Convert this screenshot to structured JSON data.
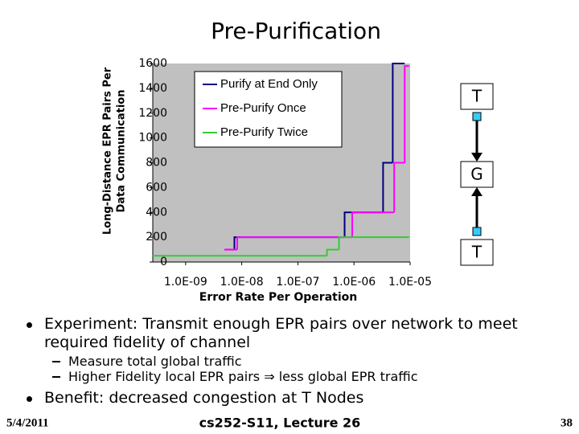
{
  "title": "Pre-Purification",
  "chart_data": {
    "type": "step",
    "ylabel": [
      "Long-Distance EPR Pairs Per",
      "Data Communication"
    ],
    "xlabel": "Error Rate Per Operation",
    "xscale": "log",
    "xlim": [
      2.6e-10,
      1e-05
    ],
    "xticks": [
      {
        "value": 1e-09,
        "label": "1.0E-09"
      },
      {
        "value": 1e-08,
        "label": "1.0E-08"
      },
      {
        "value": 1e-07,
        "label": "1.0E-07"
      },
      {
        "value": 1e-06,
        "label": "1.0E-06"
      },
      {
        "value": 1e-05,
        "label": "1.0E-05"
      }
    ],
    "ylim": [
      0,
      1600
    ],
    "yticks": [
      0,
      200,
      400,
      600,
      800,
      1000,
      1200,
      1400,
      1600
    ],
    "legend": "top-left",
    "series": [
      {
        "name": "Purify at End Only",
        "color": "#000080",
        "x": [
          4.9e-09,
          7.4e-09,
          6.8e-07,
          3.3e-06,
          4.9e-06,
          8e-06
        ],
        "values": [
          100,
          200,
          400,
          800,
          1600,
          1600
        ]
      },
      {
        "name": "Pre-Purify Once",
        "color": "#ff00ff",
        "x": [
          4.9e-09,
          8.3e-09,
          9.3e-07,
          5.2e-06,
          8e-06,
          9.6e-06
        ],
        "values": [
          100,
          200,
          400,
          800,
          1580,
          1580
        ]
      },
      {
        "name": "Pre-Purify Twice",
        "color": "#33cc33",
        "x": [
          2.6e-10,
          3.3e-07,
          5.4e-07,
          9.6e-06
        ],
        "values": [
          50,
          100,
          200,
          200
        ]
      }
    ]
  },
  "diagram": {
    "nodes": [
      "T",
      "G",
      "T"
    ]
  },
  "bullets": [
    {
      "text": "Experiment: Transmit enough EPR pairs over network to meet required fidelity of channel",
      "sub": [
        "Measure total global traffic",
        "Higher Fidelity local EPR pairs ⇒ less global EPR traffic"
      ]
    },
    {
      "text": "Benefit: decreased congestion at T Nodes",
      "sub": []
    }
  ],
  "footer": {
    "date": "5/4/2011",
    "course": "cs252-S11, Lecture 26",
    "page": "38"
  }
}
